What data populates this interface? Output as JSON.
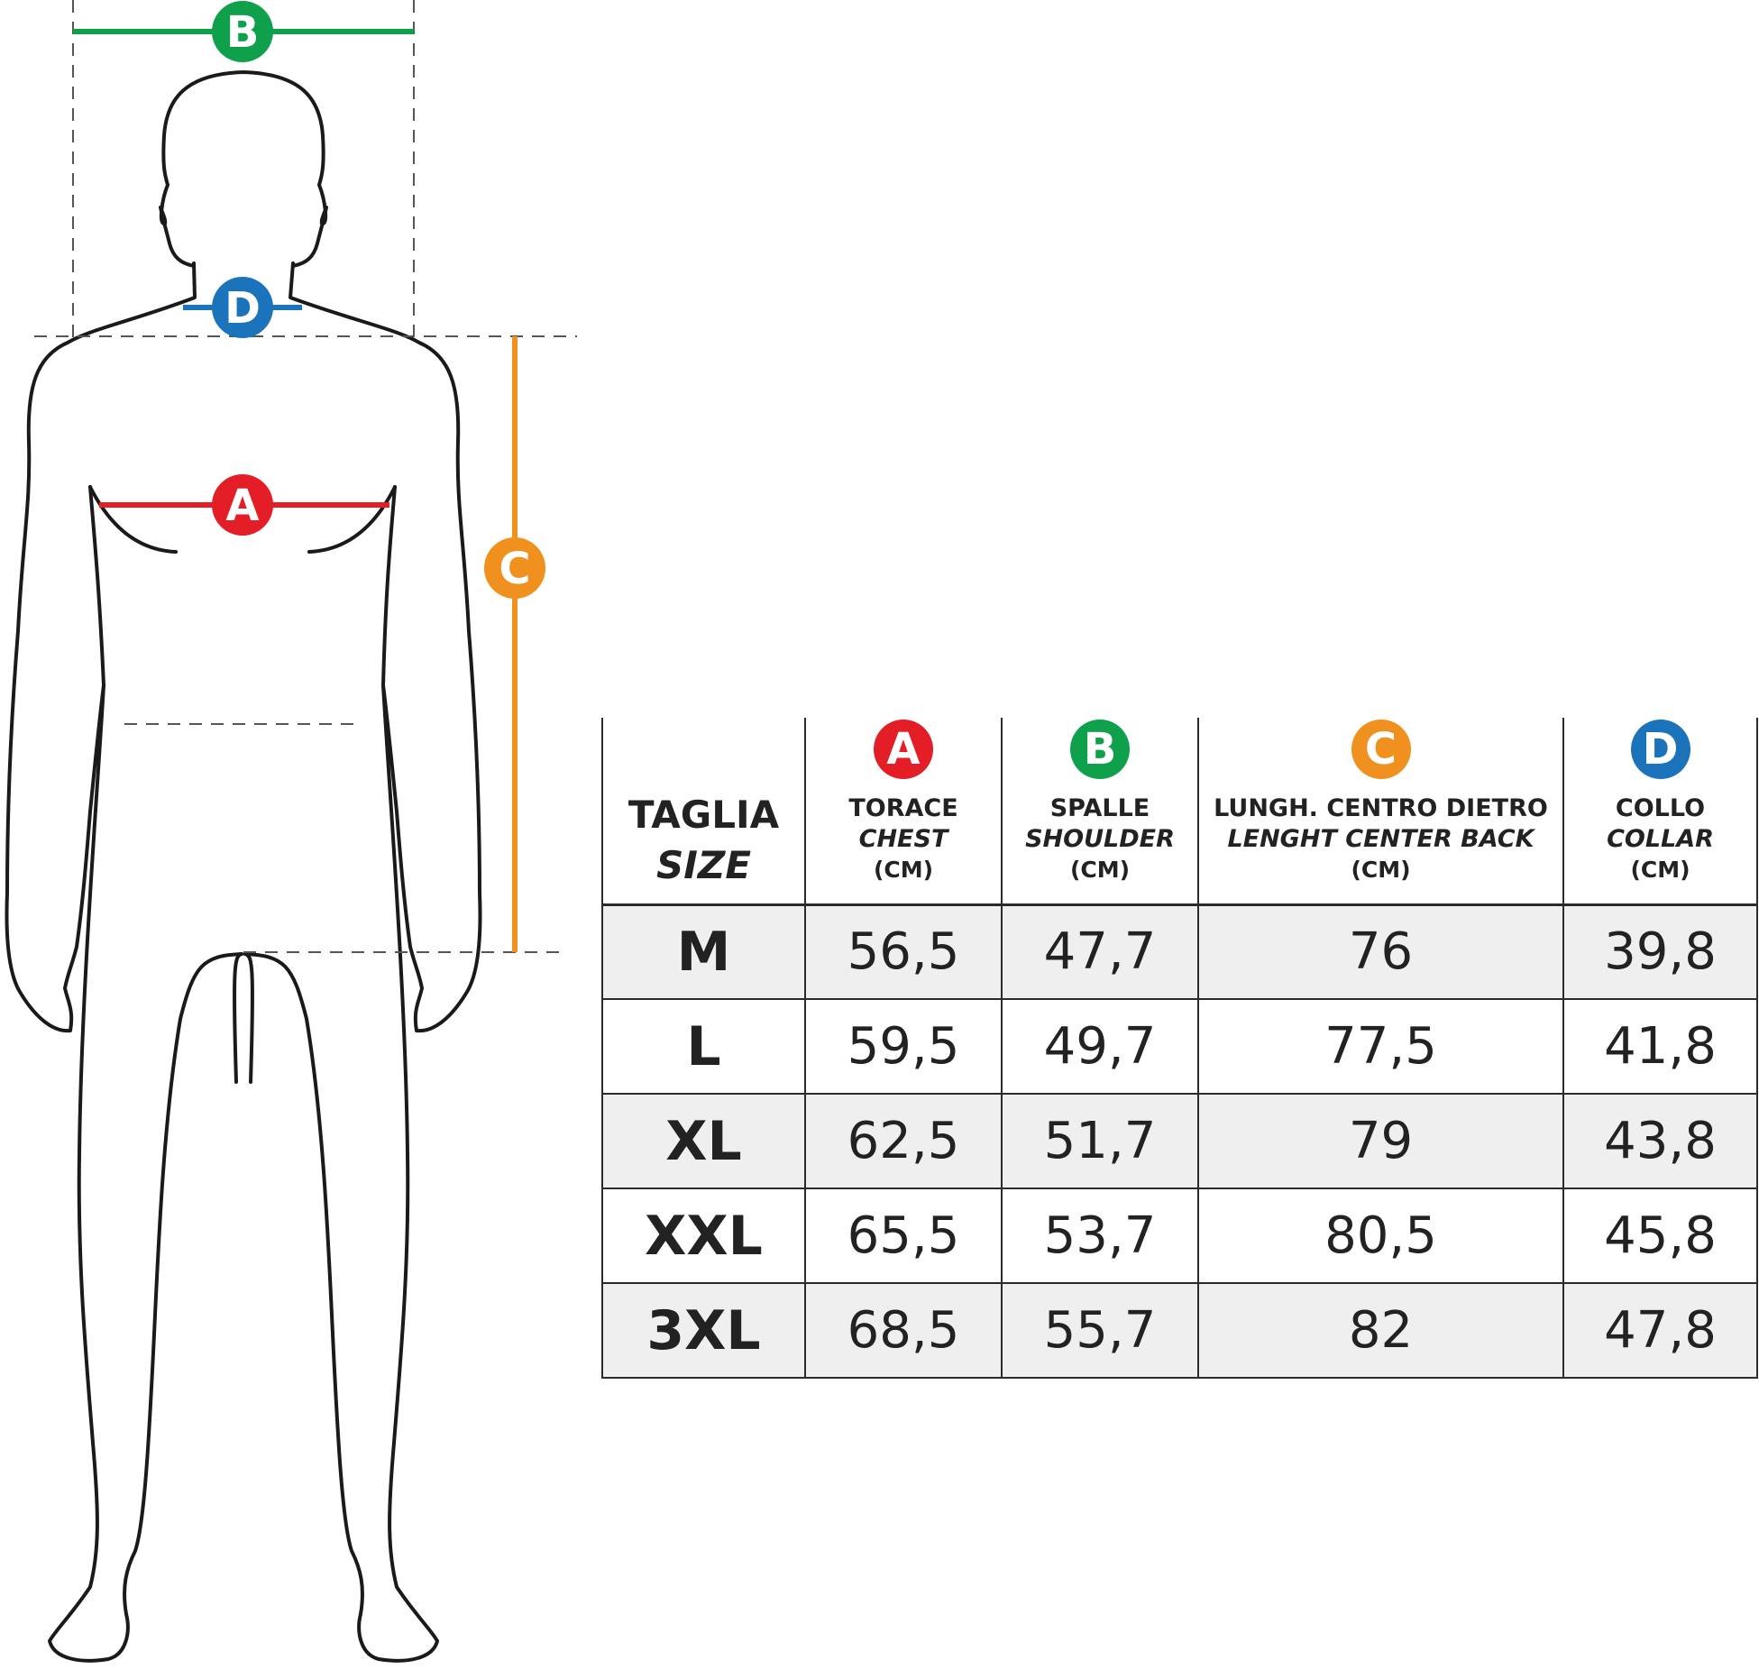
{
  "colors": {
    "A": "#e41e26",
    "B": "#0ea04b",
    "C": "#f0901e",
    "D": "#1b73bb",
    "outline": "#1a1a1a",
    "guide": "#555555"
  },
  "markers": {
    "A": "A",
    "B": "B",
    "C": "C",
    "D": "D"
  },
  "table": {
    "size_header_it": "TAGLIA",
    "size_header_en": "SIZE",
    "columns": [
      {
        "key": "A",
        "it": "TORACE",
        "en": "CHEST",
        "unit": "(CM)"
      },
      {
        "key": "B",
        "it": "SPALLE",
        "en": "SHOULDER",
        "unit": "(CM)"
      },
      {
        "key": "C",
        "it": "LUNGH. CENTRO DIETRO",
        "en": "LENGHT CENTER BACK",
        "unit": "(CM)"
      },
      {
        "key": "D",
        "it": "COLLO",
        "en": "COLLAR",
        "unit": "(CM)"
      }
    ],
    "rows": [
      {
        "size": "M",
        "values": [
          "56,5",
          "47,7",
          "76",
          "39,8"
        ]
      },
      {
        "size": "L",
        "values": [
          "59,5",
          "49,7",
          "77,5",
          "41,8"
        ]
      },
      {
        "size": "XL",
        "values": [
          "62,5",
          "51,7",
          "79",
          "43,8"
        ]
      },
      {
        "size": "XXL",
        "values": [
          "65,5",
          "53,7",
          "80,5",
          "45,8"
        ]
      },
      {
        "size": "3XL",
        "values": [
          "68,5",
          "55,7",
          "82",
          "47,8"
        ]
      }
    ]
  }
}
